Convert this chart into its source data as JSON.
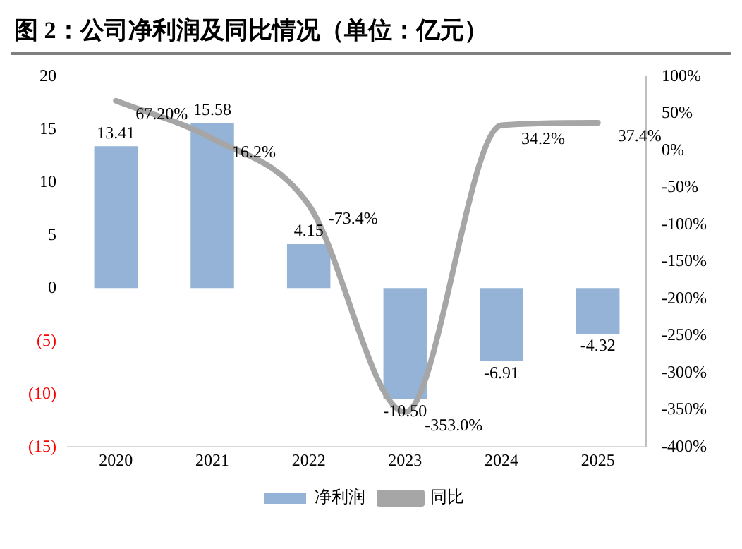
{
  "chart_data": {
    "type": "bar",
    "title": "图 2：公司净利润及同比情况（单位：亿元）",
    "categories": [
      "2020",
      "2021",
      "2022",
      "2023",
      "2024",
      "2025"
    ],
    "series": [
      {
        "name": "净利润",
        "color": "#95b3d7",
        "values": [
          13.41,
          15.58,
          4.15,
          -10.5,
          -6.91,
          -4.32
        ],
        "value_labels": [
          "13.41",
          "15.58",
          "4.15",
          "-10.50",
          "-6.91",
          "-4.32"
        ]
      },
      {
        "name": "同比",
        "type": "line",
        "axis": "y2",
        "color": "#a6a6a6",
        "values": [
          67.2,
          16.2,
          -73.4,
          -353.0,
          34.2,
          37.4
        ],
        "value_labels": [
          "67.20%",
          "16.2%",
          "-73.4%",
          "-353.0%",
          "34.2%",
          "37.4%"
        ]
      }
    ],
    "ylim": [
      -15,
      20
    ],
    "yticks": [
      {
        "value": -15,
        "label": "(15)"
      },
      {
        "value": -10,
        "label": "(10)"
      },
      {
        "value": -5,
        "label": "(5)"
      },
      0,
      5,
      10,
      15,
      20
    ],
    "y2lim": [
      -400,
      100
    ],
    "y2ticks": [
      {
        "value": -400,
        "label": "-400%"
      },
      {
        "value": -350,
        "label": "-350%"
      },
      {
        "value": -300,
        "label": "-300%"
      },
      {
        "value": -250,
        "label": "-250%"
      },
      {
        "value": -200,
        "label": "-200%"
      },
      {
        "value": -150,
        "label": "-150%"
      },
      {
        "value": -100,
        "label": "-100%"
      },
      {
        "value": -50,
        "label": "-50%"
      },
      {
        "value": 0,
        "label": "0%"
      },
      {
        "value": 50,
        "label": "50%"
      },
      {
        "value": 100,
        "label": "100%"
      }
    ],
    "legend": "bottom",
    "marker": "none"
  }
}
